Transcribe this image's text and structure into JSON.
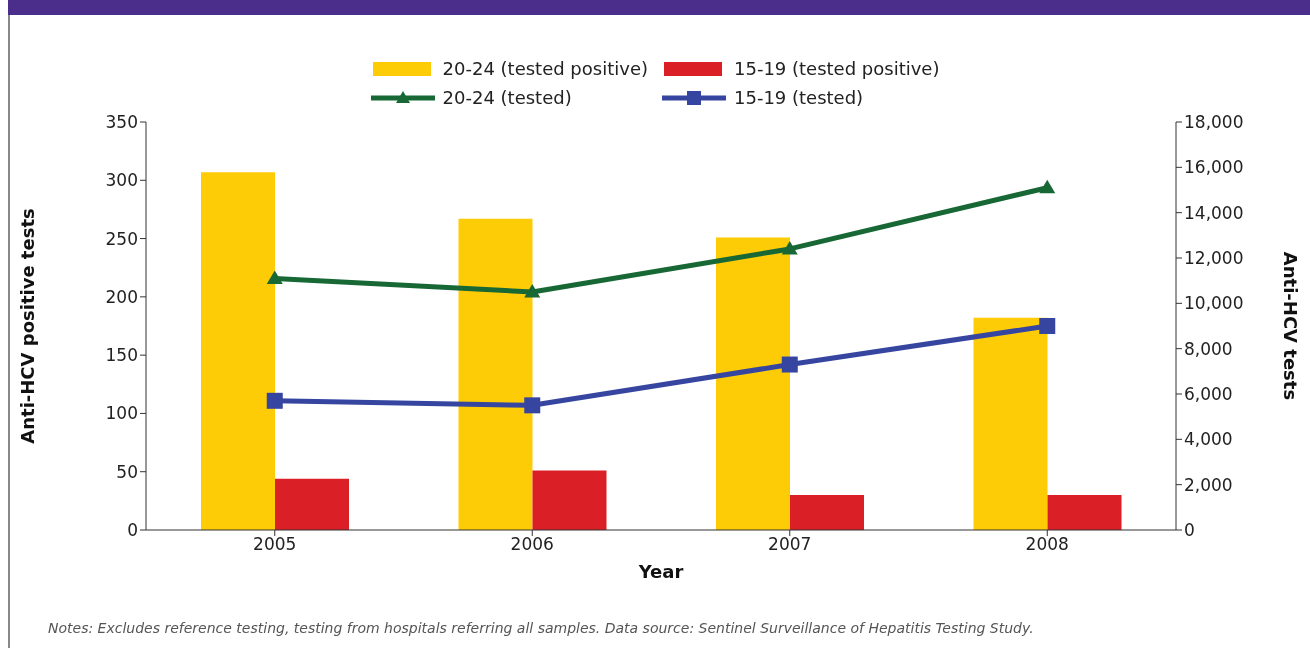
{
  "chart_data": {
    "type": "bar",
    "categories": [
      "2005",
      "2006",
      "2007",
      "2008"
    ],
    "series": [
      {
        "name": "20-24 (tested positive)",
        "color": "#fecc06",
        "values": [
          307,
          267,
          251,
          182
        ]
      },
      {
        "name": "15-19 (tested positive)",
        "color": "#da1f26",
        "values": [
          44,
          51,
          30,
          30
        ]
      },
      {
        "name": "20-24 (tested)",
        "type": "line",
        "axis": "y2",
        "marker": "triangle",
        "color": "#176835",
        "values": [
          11100,
          10500,
          12400,
          15100
        ]
      },
      {
        "name": "15-19 (tested)",
        "type": "line",
        "axis": "y2",
        "marker": "square",
        "color": "#3646a0",
        "values": [
          5700,
          5500,
          7300,
          9000
        ]
      }
    ],
    "xlabel": "Year",
    "ylabel": "Anti-HCV positive tests",
    "y2label": "Anti-HCV tests",
    "ylim": [
      0,
      350
    ],
    "yticks": [
      0,
      50,
      100,
      150,
      200,
      250,
      300,
      350
    ],
    "y2lim": [
      0,
      18000
    ],
    "y2ticks": [
      0,
      {
        "value": 2000,
        "label": "2,000"
      },
      {
        "value": 4000,
        "label": "4,000"
      },
      {
        "value": 6000,
        "label": "6,000"
      },
      {
        "value": 8000,
        "label": "8,000"
      },
      {
        "value": 10000,
        "label": "10,000"
      },
      {
        "value": 12000,
        "label": "12,000"
      },
      {
        "value": 14000,
        "label": "14,000"
      },
      {
        "value": 16000,
        "label": "16,000"
      },
      {
        "value": 18000,
        "label": "18,000"
      }
    ],
    "grid": false,
    "legend": "top",
    "line_style": "solid",
    "annotations": [
      "Notes: Excludes reference testing, testing from hospitals referring all samples. Data source: Sentinel Surveillance of Hepatitis Testing Study."
    ]
  }
}
